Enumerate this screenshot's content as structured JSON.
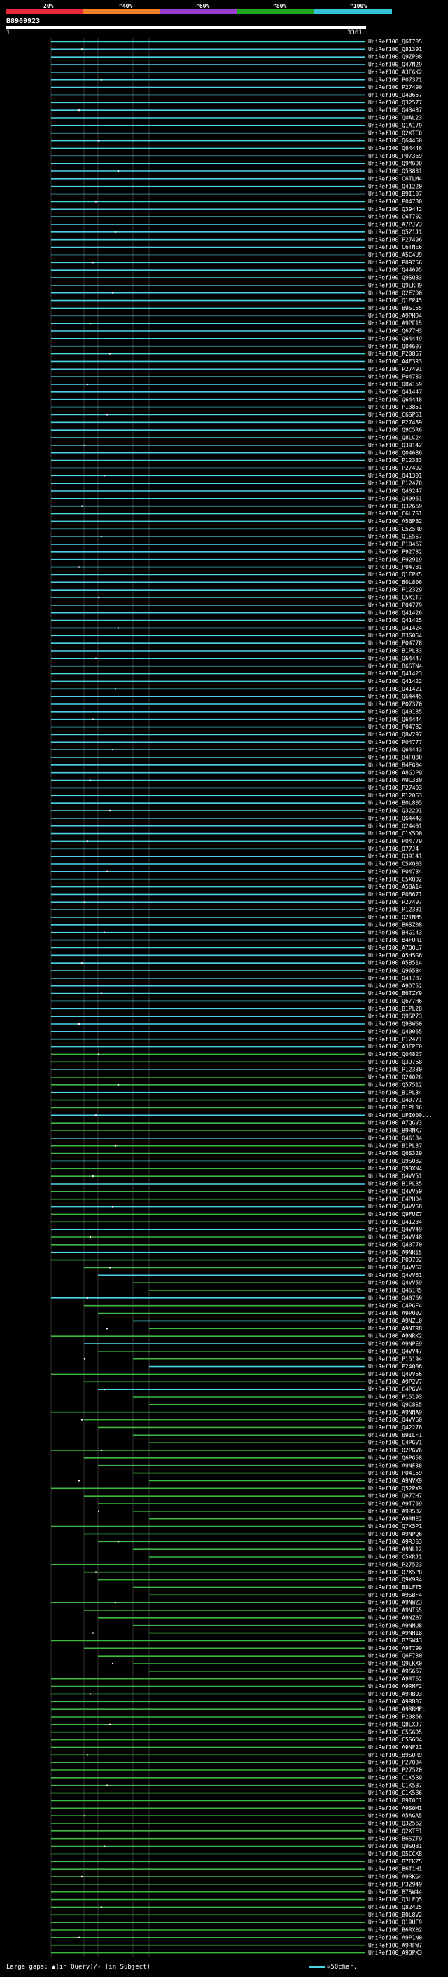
{
  "query": {
    "id": "B8909923",
    "start": "1",
    "end": "3361"
  },
  "scale": {
    "labels": [
      "20%",
      "^40%",
      "^60%",
      "^80%",
      "^100%"
    ],
    "colors": [
      "#e8283a",
      "#f07f28",
      "#9b3bd0",
      "#1fa51f",
      "#33c2d6"
    ]
  },
  "hit_colors": {
    "high": "#4dd3e6",
    "mid": "#3fb83f"
  },
  "footer": {
    "left": "Large gaps: ▲(in Query)/- (in Subject)",
    "right": "=50char."
  },
  "hits": [
    "UniRef100_Q6T705",
    "UniRef100_Q81391",
    "UniRef100_Q9ZP08",
    "UniRef100_Q47N29",
    "UniRef100_A3F6K2",
    "UniRef100_P07371",
    "UniRef100_P27490",
    "UniRef100_Q40657",
    "UniRef100_Q32577",
    "UniRef100_Q43437",
    "UniRef100_Q0AL23",
    "UniRef100_Q1A179",
    "UniRef100_Q2XTE0",
    "UniRef100_Q64450",
    "UniRef100_Q64446",
    "UniRef100_P07369",
    "UniRef100_Q9M600",
    "UniRef100_Q53831",
    "UniRef100_C6TLM4",
    "UniRef100_Q41220",
    "UniRef100_B9I107",
    "UniRef100_P04780",
    "UniRef100_Q39442",
    "UniRef100_C6T702",
    "UniRef100_A7PJV3",
    "UniRef100_Q5Z1J1",
    "UniRef100_P27496",
    "UniRef100_C6TNE6",
    "UniRef100_A5C4U9",
    "UniRef100_P09756",
    "UniRef100_Q44695",
    "UniRef100_Q9SQB3",
    "UniRef100_Q9LKH9",
    "UniRef100_Q2E7D0",
    "UniRef100_Q1EP45",
    "UniRef100_B9S155",
    "UniRef100_A9PHD4",
    "UniRef100_A9PE15",
    "UniRef100_Q677H3",
    "UniRef100_Q64449",
    "UniRef100_Q04697",
    "UniRef100_P20857",
    "UniRef100_A4F3R3",
    "UniRef100_P27491",
    "UniRef100_P04783",
    "UniRef100_Q8W159",
    "UniRef100_Q41447",
    "UniRef100_Q64448",
    "UniRef100_P13851",
    "UniRef100_C6SP51",
    "UniRef100_P27489",
    "UniRef100_Q9C5R6",
    "UniRef100_Q8LC24",
    "UniRef100_Q39142",
    "UniRef100_Q04686",
    "UniRef100_P12333",
    "UniRef100_P27492",
    "UniRef100_Q41301",
    "UniRef100_P12470",
    "UniRef100_Q40247",
    "UniRef100_Q40961",
    "UniRef100_Q32669",
    "UniRef100_C6LZS1",
    "UniRef100_A5BPB2",
    "UniRef100_C5Z5R0",
    "UniRef100_Q1E5S7",
    "UniRef100_P10467",
    "UniRef100_P92782",
    "UniRef100_P92919",
    "UniRef100_P04781",
    "UniRef100_Q1EPK5",
    "UniRef100_B0L806",
    "UniRef100_P12329",
    "UniRef100_C5X1T7",
    "UniRef100_P04779",
    "UniRef100_Q41426",
    "UniRef100_Q41425",
    "UniRef100_Q41424",
    "UniRef100_B3G064",
    "UniRef100_P04778",
    "UniRef100_B1PL33",
    "UniRef100_Q64447",
    "UniRef100_B6STN4",
    "UniRef100_Q41423",
    "UniRef100_Q41422",
    "UniRef100_Q41421",
    "UniRef100_Q64445",
    "UniRef100_P07370",
    "UniRef100_Q40185",
    "UniRef100_Q64444",
    "UniRef100_P04782",
    "UniRef100_Q8V297",
    "UniRef100_P04777",
    "UniRef100_Q64443",
    "UniRef100_B4FQ80",
    "UniRef100_B4FG04",
    "UniRef100_A8GJP9",
    "UniRef100_A9C330",
    "UniRef100_P27493",
    "UniRef100_P12063",
    "UniRef100_B0L805",
    "UniRef100_Q32291",
    "UniRef100_Q64442",
    "UniRef100_Q24401",
    "UniRef100_C1K5D0",
    "UniRef100_P04779",
    "UniRef100_Q77J4",
    "UniRef100_Q39141",
    "UniRef100_C5XQ03",
    "UniRef100_P04784",
    "UniRef100_C5XQ02",
    "UniRef100_A5BA14",
    "UniRef100_P06671",
    "UniRef100_P27497",
    "UniRef100_P12331",
    "UniRef100_Q2TNM5",
    "UniRef100_B6SZ08",
    "UniRef100_B4G143",
    "UniRef100_B4FUR1",
    "UniRef100_A7QQL7",
    "UniRef100_A5HSG6",
    "UniRef100_A5B514",
    "UniRef100_Q96584",
    "UniRef100_Q41787",
    "UniRef100_A9D752",
    "UniRef100_B6TZY9",
    "UniRef100_Q677H6",
    "UniRef100_B1PL28",
    "UniRef100_Q9SP73",
    "UniRef100_Q93W60",
    "UniRef100_Q40065",
    "UniRef100_P12471",
    "UniRef100_A3FPF0",
    "UniRef100_Q04827",
    "UniRef100_Q39768",
    "UniRef100_P12330",
    "UniRef100_Q24026",
    "UniRef100_Q57512",
    "UniRef100_B1PL34",
    "UniRef100_Q40771",
    "UniRef100_B1PL36",
    "UniRef100_UPI000...",
    "UniRef100_A7QGV3",
    "UniRef100_B9RNK7",
    "UniRef100_Q46184",
    "UniRef100_B1PL37",
    "UniRef100_Q6S329",
    "UniRef100_Q9SQ32",
    "UniRef100_Q93XN4",
    "UniRef100_Q4VV51",
    "UniRef100_B1PL35",
    "UniRef100_Q4VV50",
    "UniRef100_C4PH04",
    "UniRef100_Q4VV58",
    "UniRef100_Q9FUZ7",
    "UniRef100_Q41234",
    "UniRef100_Q4VV49",
    "UniRef100_Q4VV48",
    "UniRef100_Q40770",
    "UniRef100_A9NR15",
    "UniRef100_P09792",
    "UniRef100_Q4VV62",
    "UniRef100_Q4VV61",
    "UniRef100_Q4VV59",
    "UniRef100_Q461R5",
    "UniRef100_Q40769",
    "UniRef100_C4PGF4",
    "UniRef100_A9P002",
    "UniRef100_A9NZL0",
    "UniRef100_A9NTR8",
    "UniRef100_A9NRK2",
    "UniRef100_A9NPE9",
    "UniRef100_Q4VV47",
    "UniRef100_P15194",
    "UniRef100_P24006",
    "UniRef100_Q4VV56",
    "UniRef100_A9P2V7",
    "UniRef100_C4PGV4",
    "UniRef100_P15193",
    "UniRef100_Q9C8S5",
    "UniRef100_A9NNA9",
    "UniRef100_Q4VV60",
    "UniRef100_Q42276",
    "UniRef100_B9ILF1",
    "UniRef100_C4PGV1",
    "UniRef100_Q2PGV6",
    "UniRef100_Q6PG58",
    "UniRef100_A9NF38",
    "UniRef100_P04159",
    "UniRef100_A9NVX9",
    "UniRef100_Q52PX9",
    "UniRef100_Q677H7",
    "UniRef100_A9T769",
    "UniRef100_A9RS82",
    "UniRef100_A9RNE2",
    "UniRef100_Q7X5P1",
    "UniRef100_A9NPQ6",
    "UniRef100_A9RJS3",
    "UniRef100_A9NL12",
    "UniRef100_C5XRJ1",
    "UniRef100_P27523",
    "UniRef100_Q7X5P0",
    "UniRef100_Q9X9R4",
    "UniRef100_B8LFT5",
    "UniRef100_A9SBF4",
    "UniRef100_A9NWZ3",
    "UniRef100_A9NT55",
    "UniRef100_A9NZ07",
    "UniRef100_A9NMU8",
    "UniRef100_A9NH18",
    "UniRef100_B7SW43",
    "UniRef100_A9T799",
    "UniRef100_Q6F730",
    "UniRef100_Q9LKX0",
    "UniRef100_A9S657",
    "UniRef100_A9RT62",
    "UniRef100_A9RMF2",
    "UniRef100_A9RBQ3",
    "UniRef100_A9RB07",
    "UniRef100_A9RRMPL",
    "UniRef100_P20866",
    "UniRef100_Q8LXJ7",
    "UniRef100_C5S6D5",
    "UniRef100_C5S6D4",
    "UniRef100_A9NF21",
    "UniRef100_B9SUR9",
    "UniRef100_P27034",
    "UniRef100_P27520",
    "UniRef100_C1K5B9",
    "UniRef100_C1K5B7",
    "UniRef100_C1K5B6",
    "UniRef100_B9T0C1",
    "UniRef100_A9S0M1",
    "UniRef100_A5AGA5",
    "UniRef100_Q32562",
    "UniRef100_Q2XTE1",
    "UniRef100_B6SZT9",
    "UniRef100_Q9SQB1",
    "UniRef100_Q5CCX8",
    "UniRef100_B7FKZ5",
    "UniRef100_B6T1H1",
    "UniRef100_A9RKG4",
    "UniRef100_P32949",
    "UniRef100_B7SW44",
    "UniRef100_Q3LFQ5",
    "UniRef100_Q82425",
    "UniRef100_B0L8V2",
    "UniRef100_Q19UF9",
    "UniRef100_B6RX02",
    "UniRef100_A9P1N0",
    "UniRef100_A9RFW7",
    "UniRef100_A9QPX3"
  ]
}
